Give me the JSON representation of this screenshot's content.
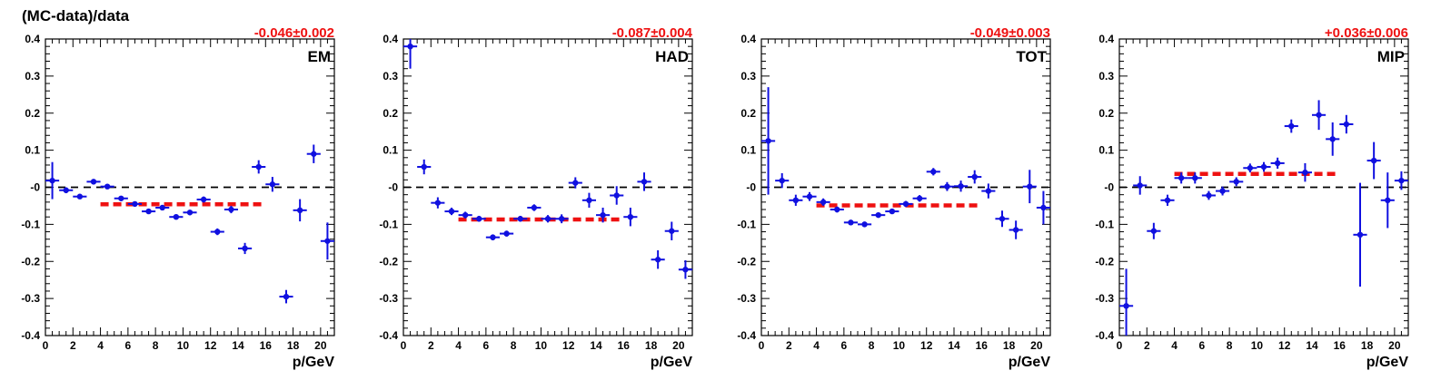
{
  "figure_title": "(MC-data)/data",
  "colors": {
    "points": "#1010e0",
    "fit": "#ee1111",
    "reference": "#000000",
    "fit_label": "#ee1111"
  },
  "chart_data": [
    {
      "type": "scatter",
      "panel_label": "EM",
      "fit_label": "-0.046±0.002",
      "xlabel": "p/GeV",
      "ylabel": "",
      "xlim": [
        0,
        21
      ],
      "ylim": [
        -0.4,
        0.4
      ],
      "x_ticks": [
        0,
        2,
        4,
        6,
        8,
        10,
        12,
        14,
        16,
        18,
        20
      ],
      "y_ticks": [
        "0.4",
        "0.3",
        "0.2",
        "0.1",
        "-0",
        "-0.1",
        "-0.2",
        "-0.3",
        "-0.4"
      ],
      "reference_line": 0,
      "fit": {
        "x_range": [
          4,
          16
        ],
        "value": -0.046
      },
      "points": [
        {
          "x": 0.5,
          "y": 0.018,
          "err": 0.05
        },
        {
          "x": 1.5,
          "y": -0.008,
          "err": 0.008
        },
        {
          "x": 2.5,
          "y": -0.025,
          "err": 0.006
        },
        {
          "x": 3.5,
          "y": 0.015,
          "err": 0.005
        },
        {
          "x": 4.5,
          "y": 0.002,
          "err": 0.005
        },
        {
          "x": 5.5,
          "y": -0.03,
          "err": 0.005
        },
        {
          "x": 6.5,
          "y": -0.045,
          "err": 0.005
        },
        {
          "x": 7.5,
          "y": -0.065,
          "err": 0.006
        },
        {
          "x": 8.5,
          "y": -0.055,
          "err": 0.006
        },
        {
          "x": 9.5,
          "y": -0.08,
          "err": 0.007
        },
        {
          "x": 10.5,
          "y": -0.068,
          "err": 0.007
        },
        {
          "x": 11.5,
          "y": -0.033,
          "err": 0.008
        },
        {
          "x": 12.5,
          "y": -0.12,
          "err": 0.009
        },
        {
          "x": 13.5,
          "y": -0.06,
          "err": 0.01
        },
        {
          "x": 14.5,
          "y": -0.165,
          "err": 0.015
        },
        {
          "x": 15.5,
          "y": 0.055,
          "err": 0.018
        },
        {
          "x": 16.5,
          "y": 0.008,
          "err": 0.02
        },
        {
          "x": 17.5,
          "y": -0.295,
          "err": 0.018
        },
        {
          "x": 18.5,
          "y": -0.062,
          "err": 0.03
        },
        {
          "x": 19.5,
          "y": 0.09,
          "err": 0.025
        },
        {
          "x": 20.5,
          "y": -0.145,
          "err": 0.05
        }
      ]
    },
    {
      "type": "scatter",
      "panel_label": "HAD",
      "fit_label": "-0.087±0.004",
      "xlabel": "p/GeV",
      "ylabel": "",
      "xlim": [
        0,
        21
      ],
      "ylim": [
        -0.4,
        0.4
      ],
      "x_ticks": [
        0,
        2,
        4,
        6,
        8,
        10,
        12,
        14,
        16,
        18,
        20
      ],
      "y_ticks": [
        "0.4",
        "0.3",
        "0.2",
        "0.1",
        "-0",
        "-0.1",
        "-0.2",
        "-0.3",
        "-0.4"
      ],
      "reference_line": 0,
      "fit": {
        "x_range": [
          4,
          16
        ],
        "value": -0.087
      },
      "points": [
        {
          "x": 0.5,
          "y": 0.38,
          "err": 0.06
        },
        {
          "x": 1.5,
          "y": 0.055,
          "err": 0.02
        },
        {
          "x": 2.5,
          "y": -0.042,
          "err": 0.015
        },
        {
          "x": 3.5,
          "y": -0.065,
          "err": 0.01
        },
        {
          "x": 4.5,
          "y": -0.075,
          "err": 0.009
        },
        {
          "x": 5.5,
          "y": -0.085,
          "err": 0.008
        },
        {
          "x": 6.5,
          "y": -0.135,
          "err": 0.008
        },
        {
          "x": 7.5,
          "y": -0.125,
          "err": 0.008
        },
        {
          "x": 8.5,
          "y": -0.085,
          "err": 0.008
        },
        {
          "x": 9.5,
          "y": -0.055,
          "err": 0.009
        },
        {
          "x": 10.5,
          "y": -0.085,
          "err": 0.01
        },
        {
          "x": 11.5,
          "y": -0.085,
          "err": 0.012
        },
        {
          "x": 12.5,
          "y": 0.012,
          "err": 0.015
        },
        {
          "x": 13.5,
          "y": -0.035,
          "err": 0.02
        },
        {
          "x": 14.5,
          "y": -0.075,
          "err": 0.02
        },
        {
          "x": 15.5,
          "y": -0.022,
          "err": 0.025
        },
        {
          "x": 16.5,
          "y": -0.08,
          "err": 0.025
        },
        {
          "x": 17.5,
          "y": 0.015,
          "err": 0.025
        },
        {
          "x": 18.5,
          "y": -0.195,
          "err": 0.025
        },
        {
          "x": 19.5,
          "y": -0.118,
          "err": 0.025
        },
        {
          "x": 20.5,
          "y": -0.222,
          "err": 0.025
        }
      ]
    },
    {
      "type": "scatter",
      "panel_label": "TOT",
      "fit_label": "-0.049±0.003",
      "xlabel": "p/GeV",
      "ylabel": "",
      "xlim": [
        0,
        21
      ],
      "ylim": [
        -0.4,
        0.4
      ],
      "x_ticks": [
        0,
        2,
        4,
        6,
        8,
        10,
        12,
        14,
        16,
        18,
        20
      ],
      "y_ticks": [
        "0.4",
        "0.3",
        "0.2",
        "0.1",
        "-0",
        "-0.1",
        "-0.2",
        "-0.3",
        "-0.4"
      ],
      "reference_line": 0,
      "fit": {
        "x_range": [
          4,
          16
        ],
        "value": -0.049
      },
      "points": [
        {
          "x": 0.5,
          "y": 0.125,
          "err": 0.145
        },
        {
          "x": 1.5,
          "y": 0.018,
          "err": 0.02
        },
        {
          "x": 2.5,
          "y": -0.035,
          "err": 0.015
        },
        {
          "x": 3.5,
          "y": -0.025,
          "err": 0.012
        },
        {
          "x": 4.5,
          "y": -0.04,
          "err": 0.01
        },
        {
          "x": 5.5,
          "y": -0.06,
          "err": 0.008
        },
        {
          "x": 6.5,
          "y": -0.095,
          "err": 0.006
        },
        {
          "x": 7.5,
          "y": -0.1,
          "err": 0.006
        },
        {
          "x": 8.5,
          "y": -0.075,
          "err": 0.006
        },
        {
          "x": 9.5,
          "y": -0.065,
          "err": 0.007
        },
        {
          "x": 10.5,
          "y": -0.045,
          "err": 0.008
        },
        {
          "x": 11.5,
          "y": -0.03,
          "err": 0.009
        },
        {
          "x": 12.5,
          "y": 0.042,
          "err": 0.01
        },
        {
          "x": 13.5,
          "y": 0.002,
          "err": 0.012
        },
        {
          "x": 14.5,
          "y": 0.003,
          "err": 0.015
        },
        {
          "x": 15.5,
          "y": 0.028,
          "err": 0.018
        },
        {
          "x": 16.5,
          "y": -0.01,
          "err": 0.02
        },
        {
          "x": 17.5,
          "y": -0.085,
          "err": 0.022
        },
        {
          "x": 18.5,
          "y": -0.115,
          "err": 0.025
        },
        {
          "x": 19.5,
          "y": 0.002,
          "err": 0.045
        },
        {
          "x": 20.5,
          "y": -0.055,
          "err": 0.045
        }
      ]
    },
    {
      "type": "scatter",
      "panel_label": "MIP",
      "fit_label": "+0.036±0.006",
      "xlabel": "p/GeV",
      "ylabel": "",
      "xlim": [
        0,
        21
      ],
      "ylim": [
        -0.4,
        0.4
      ],
      "x_ticks": [
        0,
        2,
        4,
        6,
        8,
        10,
        12,
        14,
        16,
        18,
        20
      ],
      "y_ticks": [
        "0.4",
        "0.3",
        "0.2",
        "0.1",
        "-0",
        "-0.1",
        "-0.2",
        "-0.3",
        "-0.4"
      ],
      "reference_line": 0,
      "fit": {
        "x_range": [
          4,
          16
        ],
        "value": 0.036
      },
      "points": [
        {
          "x": 0.5,
          "y": -0.32,
          "err": 0.1
        },
        {
          "x": 1.5,
          "y": 0.005,
          "err": 0.025
        },
        {
          "x": 2.5,
          "y": -0.118,
          "err": 0.022
        },
        {
          "x": 3.5,
          "y": -0.035,
          "err": 0.015
        },
        {
          "x": 4.5,
          "y": 0.025,
          "err": 0.015
        },
        {
          "x": 5.5,
          "y": 0.025,
          "err": 0.015
        },
        {
          "x": 6.5,
          "y": -0.022,
          "err": 0.012
        },
        {
          "x": 7.5,
          "y": -0.01,
          "err": 0.012
        },
        {
          "x": 8.5,
          "y": 0.015,
          "err": 0.012
        },
        {
          "x": 9.5,
          "y": 0.052,
          "err": 0.012
        },
        {
          "x": 10.5,
          "y": 0.055,
          "err": 0.013
        },
        {
          "x": 11.5,
          "y": 0.065,
          "err": 0.015
        },
        {
          "x": 12.5,
          "y": 0.165,
          "err": 0.018
        },
        {
          "x": 13.5,
          "y": 0.04,
          "err": 0.025
        },
        {
          "x": 14.5,
          "y": 0.195,
          "err": 0.04
        },
        {
          "x": 15.5,
          "y": 0.13,
          "err": 0.045
        },
        {
          "x": 16.5,
          "y": 0.17,
          "err": 0.025
        },
        {
          "x": 17.5,
          "y": -0.128,
          "err": 0.14
        },
        {
          "x": 18.5,
          "y": 0.072,
          "err": 0.05
        },
        {
          "x": 19.5,
          "y": -0.035,
          "err": 0.075
        },
        {
          "x": 20.5,
          "y": 0.018,
          "err": 0.025
        }
      ]
    }
  ]
}
